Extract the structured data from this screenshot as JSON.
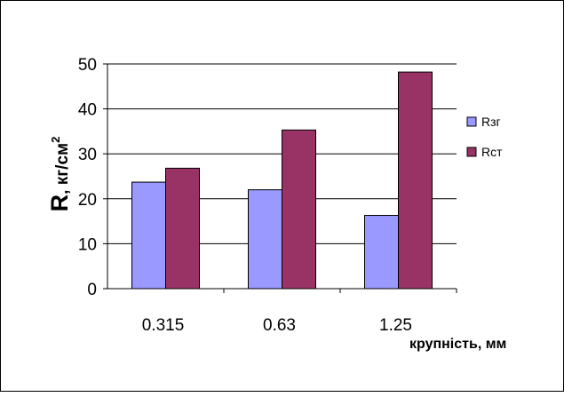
{
  "chart_data": {
    "type": "bar",
    "categories": [
      "0.315",
      "0.63",
      "1.25"
    ],
    "series": [
      {
        "name": "Rзг",
        "values": [
          23.7,
          22.0,
          16.3
        ],
        "color": "#9999ff"
      },
      {
        "name": "Rст",
        "values": [
          26.8,
          35.3,
          48.2
        ],
        "color": "#993366"
      }
    ],
    "ylabel_main": "R",
    "ylabel_units": ", кг/см",
    "ylabel_sup": "2",
    "xlabel": "крупність, мм",
    "ylim": [
      0,
      50
    ],
    "yticks": [
      0,
      10,
      20,
      30,
      40,
      50
    ],
    "grid": true,
    "legend": "right"
  }
}
